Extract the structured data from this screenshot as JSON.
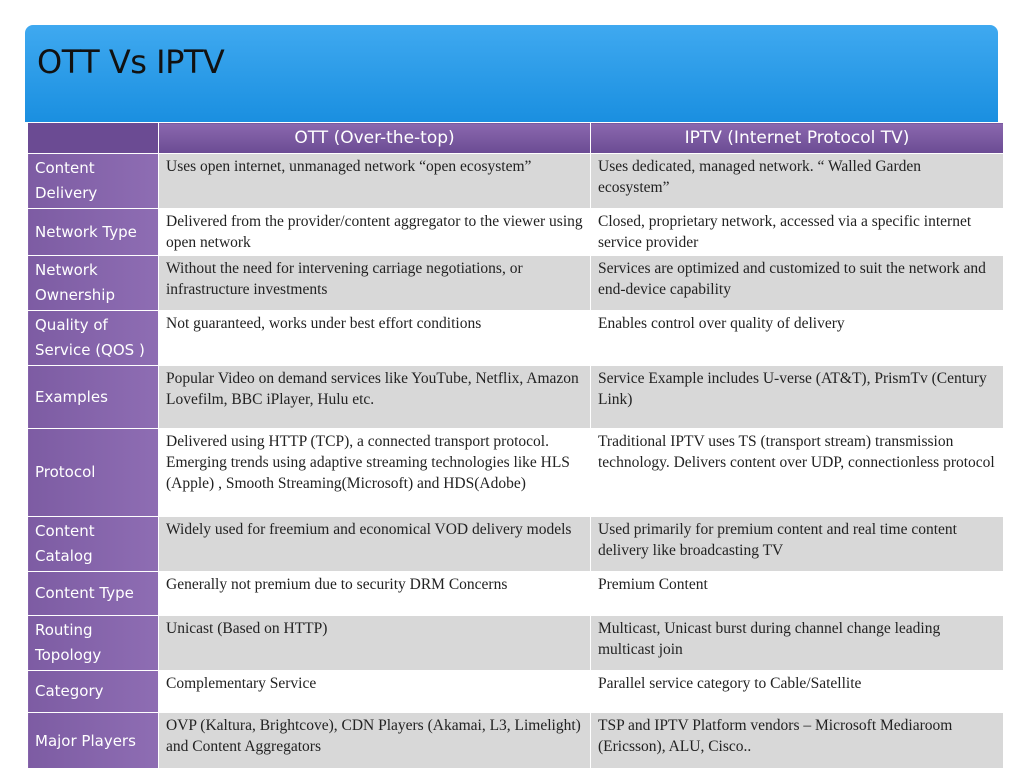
{
  "header": {
    "title": "OTT Vs IPTV"
  },
  "table": {
    "columns": [
      "OTT (Over-the-top)",
      "IPTV (Internet Protocol TV)"
    ],
    "rows": [
      [
        "Content Delivery",
        "Uses open internet, unmanaged network “open ecosystem”",
        "Uses  dedicated, managed network. “ Walled Garden ecosystem”"
      ],
      [
        "Network Type",
        "Delivered from the provider/content aggregator to the viewer using open network",
        "Closed, proprietary network, accessed via a specific internet service provider"
      ],
      [
        "Network Ownership",
        "Without the need for intervening carriage negotiations, or infrastructure investments",
        "Services are optimized and customized to suit the network and end-device capability"
      ],
      [
        "Quality of Service (QOS )",
        "Not guaranteed, works under best effort conditions",
        "Enables control over quality of delivery"
      ],
      [
        "Examples",
        "Popular Video on demand services like YouTube, Netflix, Amazon Lovefilm, BBC iPlayer, Hulu etc.",
        "Service Example includes U-verse (AT&T), PrismTv (Century Link)"
      ],
      [
        "Protocol",
        "Delivered using HTTP (TCP), a connected transport protocol.  Emerging trends using adaptive streaming technologies like HLS (Apple) , Smooth Streaming(Microsoft) and HDS(Adobe)",
        "Traditional IPTV uses TS (transport stream) transmission technology. Delivers content over UDP, connectionless protocol"
      ],
      [
        "Content Catalog",
        "Widely used for freemium and economical VOD delivery models",
        "Used primarily for premium content  and real time content delivery like broadcasting TV"
      ],
      [
        "Content Type",
        "Generally not premium due to security DRM Concerns",
        "Premium Content"
      ],
      [
        "Routing Topology",
        "Unicast (Based on HTTP)",
        "Multicast, Unicast burst during channel change leading multicast join"
      ],
      [
        "Category",
        "Complementary Service",
        "Parallel service category to Cable/Satellite"
      ],
      [
        "Major Players",
        "OVP (Kaltura, Brightcove), CDN Players (Akamai, L3, Limelight) and Content Aggregators",
        "TSP and IPTV Platform vendors – Microsoft Mediaroom (Ericsson), ALU, Cisco.."
      ]
    ]
  }
}
